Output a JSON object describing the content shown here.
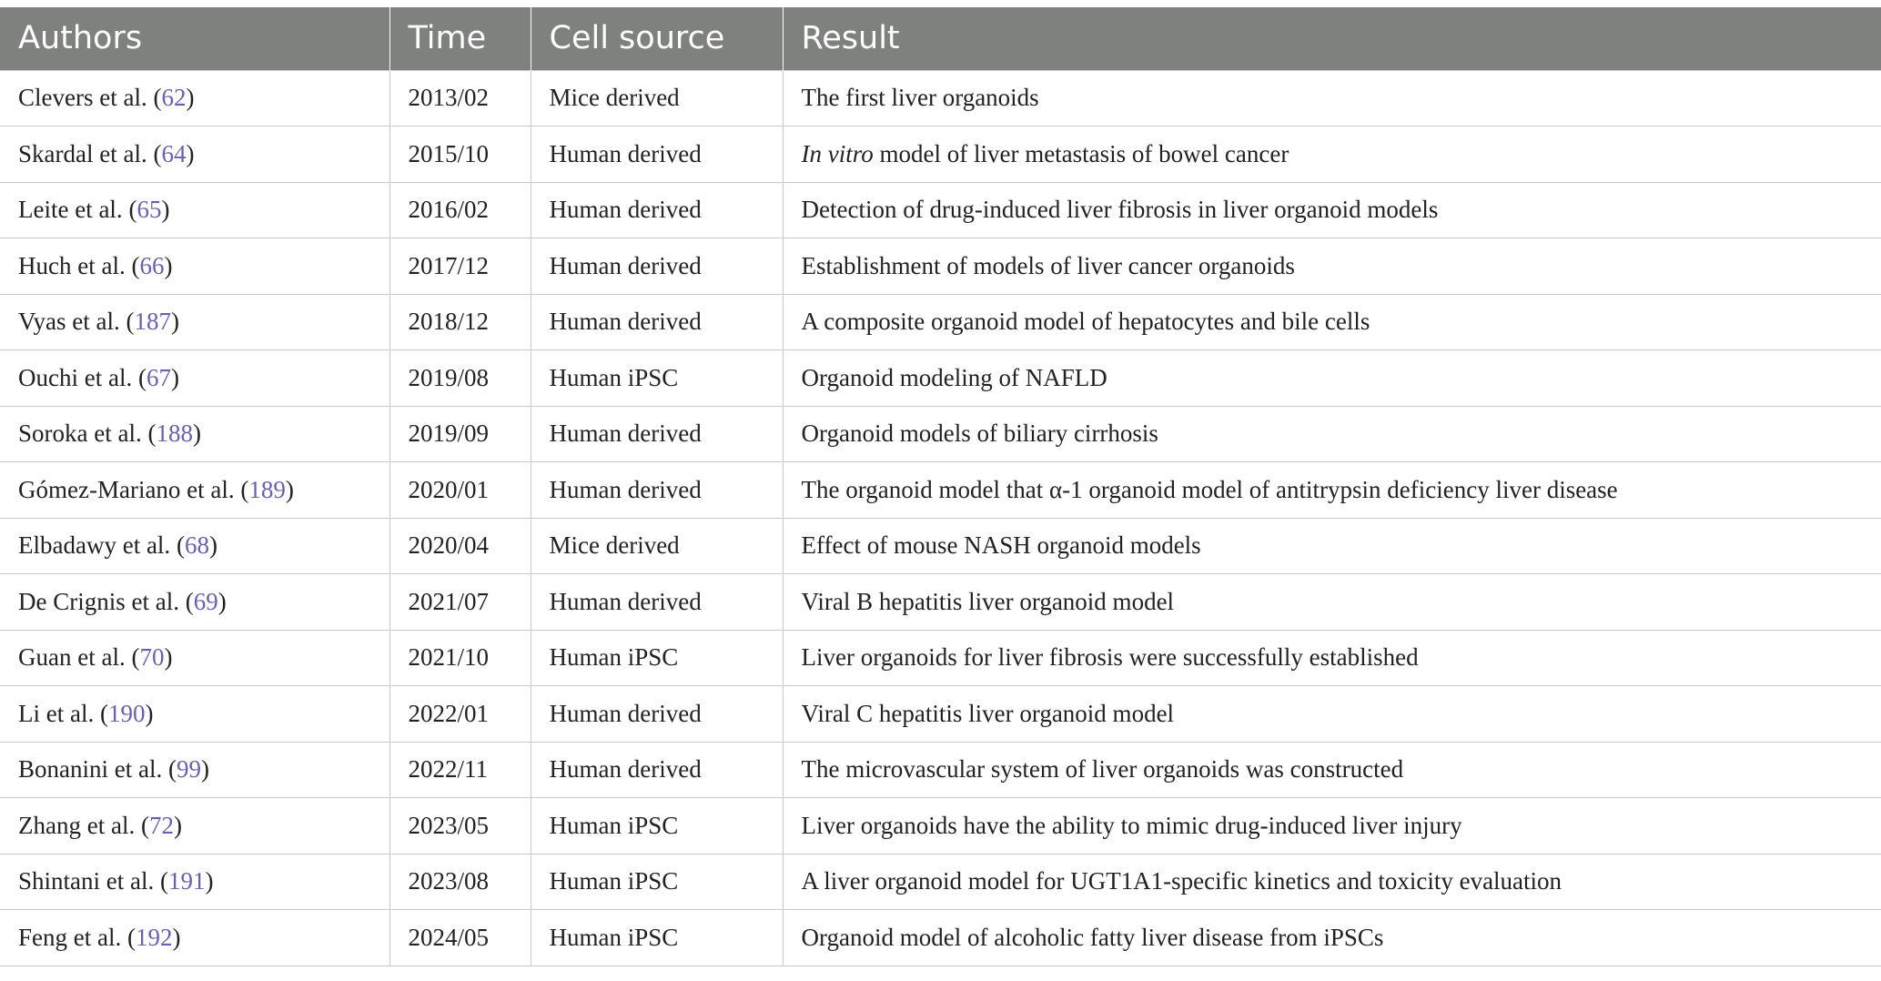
{
  "table": {
    "headers": {
      "authors": "Authors",
      "time": "Time",
      "cell_source": "Cell source",
      "result": "Result"
    },
    "rows": [
      {
        "author": "Clevers et al.",
        "ref": "62",
        "time": "2013/02",
        "cell_source": "Mice derived",
        "result_prefix": "",
        "result_italic": "",
        "result": "The first liver organoids"
      },
      {
        "author": "Skardal et al.",
        "ref": "64",
        "time": "2015/10",
        "cell_source": "Human derived",
        "result_prefix": "",
        "result_italic": "In vitro",
        "result": " model of liver metastasis of bowel cancer"
      },
      {
        "author": "Leite et al.",
        "ref": "65",
        "time": "2016/02",
        "cell_source": "Human derived",
        "result_prefix": "",
        "result_italic": "",
        "result": "Detection of drug-induced liver fibrosis in liver organoid models"
      },
      {
        "author": "Huch et al.",
        "ref": "66",
        "time": "2017/12",
        "cell_source": "Human derived",
        "result_prefix": "",
        "result_italic": "",
        "result": "Establishment of models of liver cancer organoids"
      },
      {
        "author": "Vyas et al.",
        "ref": "187",
        "time": "2018/12",
        "cell_source": "Human derived",
        "result_prefix": "",
        "result_italic": "",
        "result": "A composite organoid model of hepatocytes and bile cells"
      },
      {
        "author": "Ouchi et al.",
        "ref": "67",
        "time": "2019/08",
        "cell_source": "Human iPSC",
        "result_prefix": "",
        "result_italic": "",
        "result": "Organoid modeling of NAFLD"
      },
      {
        "author": "Soroka et al.",
        "ref": "188",
        "time": "2019/09",
        "cell_source": "Human derived",
        "result_prefix": "",
        "result_italic": "",
        "result": "Organoid models of biliary cirrhosis"
      },
      {
        "author": "Gómez-Mariano et al.",
        "ref": "189",
        "time": "2020/01",
        "cell_source": "Human derived",
        "result_prefix": "",
        "result_italic": "",
        "result": "The organoid model that α-1 organoid model of antitrypsin deficiency liver disease"
      },
      {
        "author": "Elbadawy et al.",
        "ref": "68",
        "time": "2020/04",
        "cell_source": "Mice derived",
        "result_prefix": "",
        "result_italic": "",
        "result": "Effect of mouse NASH organoid models"
      },
      {
        "author": "De Crignis et al.",
        "ref": "69",
        "time": "2021/07",
        "cell_source": "Human derived",
        "result_prefix": "",
        "result_italic": "",
        "result": "Viral B hepatitis liver organoid model"
      },
      {
        "author": "Guan et al.",
        "ref": "70",
        "time": "2021/10",
        "cell_source": "Human iPSC",
        "result_prefix": "",
        "result_italic": "",
        "result": "Liver organoids for liver fibrosis were successfully established"
      },
      {
        "author": "Li et al.",
        "ref": "190",
        "time": "2022/01",
        "cell_source": "Human derived",
        "result_prefix": "",
        "result_italic": "",
        "result": "Viral C hepatitis liver organoid model"
      },
      {
        "author": "Bonanini et al.",
        "ref": "99",
        "time": "2022/11",
        "cell_source": "Human derived",
        "result_prefix": "",
        "result_italic": "",
        "result": "The microvascular system of liver organoids was constructed"
      },
      {
        "author": "Zhang et al.",
        "ref": "72",
        "time": "2023/05",
        "cell_source": "Human iPSC",
        "result_prefix": "",
        "result_italic": "",
        "result": "Liver organoids have the ability to mimic drug-induced liver injury"
      },
      {
        "author": "Shintani et al.",
        "ref": "191",
        "time": "2023/08",
        "cell_source": "Human iPSC",
        "result_prefix": "",
        "result_italic": "",
        "result": "A liver organoid model for UGT1A1-specific kinetics and toxicity evaluation"
      },
      {
        "author": "Feng et al.",
        "ref": "192",
        "time": "2024/05",
        "cell_source": "Human iPSC",
        "result_prefix": "",
        "result_italic": "",
        "result": "Organoid model of alcoholic fatty liver disease from iPSCs"
      }
    ]
  },
  "colors": {
    "header_bg": "#7f817f",
    "header_text": "#ffffff",
    "reference_link": "#6a5fb0",
    "grid": "#c9c9c9"
  }
}
